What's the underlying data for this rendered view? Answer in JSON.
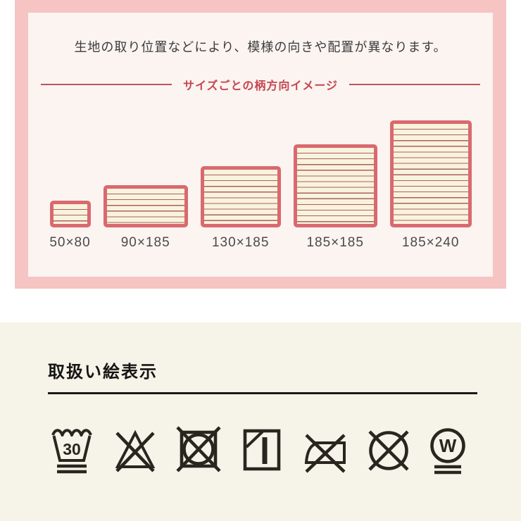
{
  "colors": {
    "page_bg": "#ffffff",
    "pink_frame": "#f5c4c3",
    "card_bg": "#fbf4f1",
    "note_text": "#3b3b3b",
    "divider_red": "#b9555c",
    "divider_title_red": "#c5454e",
    "rect_border": "#d9696e",
    "rect_fill": "#f9f3dd",
    "stripe_line": "#a96060",
    "size_label_gray": "#4a4a4a",
    "care_bg": "#f6f4e8",
    "care_heading": "#151515",
    "symbol_ink": "#2b2520"
  },
  "pattern_section": {
    "note": "生地の取り位置などにより、模様の向きや配置が異なります。",
    "divider_title": "サイズごとの柄方向イメージ",
    "sizes": [
      {
        "label": "50×80",
        "drawn_w": 58,
        "drawn_h": 38
      },
      {
        "label": "90×185",
        "drawn_w": 120,
        "drawn_h": 60
      },
      {
        "label": "130×185",
        "drawn_w": 114,
        "drawn_h": 87
      },
      {
        "label": "185×185",
        "drawn_w": 119,
        "drawn_h": 118
      },
      {
        "label": "185×240",
        "drawn_w": 116,
        "drawn_h": 152
      }
    ]
  },
  "care_section": {
    "heading": "取扱い絵表示",
    "symbols": [
      {
        "name": "wash-30-very-mild",
        "label": "30"
      },
      {
        "name": "do-not-bleach"
      },
      {
        "name": "do-not-tumble-dry"
      },
      {
        "name": "line-dry-in-shade"
      },
      {
        "name": "do-not-iron"
      },
      {
        "name": "do-not-dry-clean"
      },
      {
        "name": "wet-clean-very-mild",
        "label": "W"
      }
    ]
  }
}
